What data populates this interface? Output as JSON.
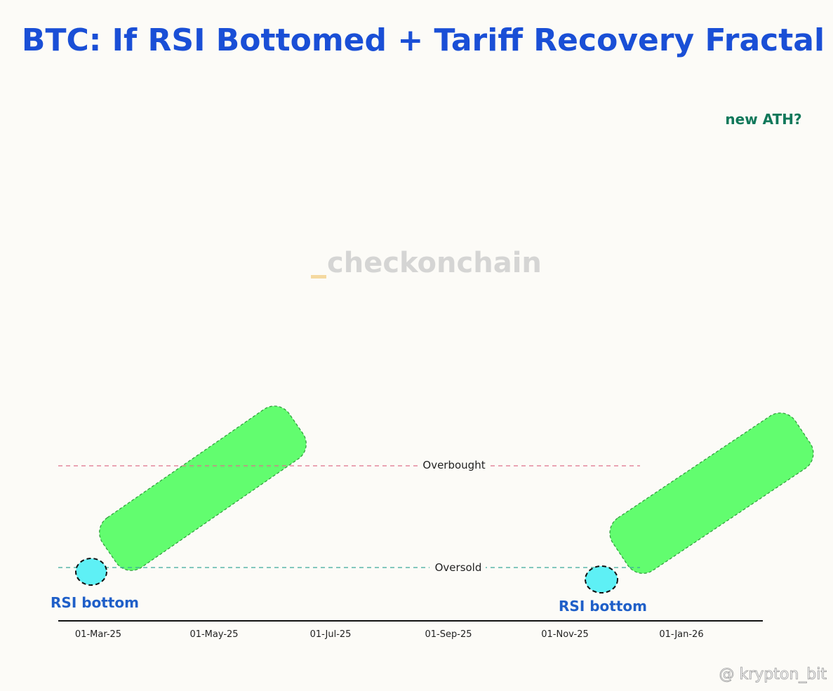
{
  "title": "BTC: If RSI Bottomed + Tariff Recovery Fractal",
  "watermark": "checkonchain",
  "credit": "@ krypton_bit",
  "annotations": {
    "new_ath": "new ATH?",
    "rsi_bottom_left": "RSI bottom",
    "rsi_bottom_right": "RSI bottom"
  },
  "colors": {
    "title": "#1a4fd6",
    "price_line": "#111111",
    "projection_line": "#2ecf95",
    "rsi_line": "#6a5acd",
    "overbought": "#e0708a",
    "oversold": "#3aaa9a",
    "highlight_box": "#5dfd6a",
    "bottom_circle": "#5ef0f5"
  },
  "chart_data": {
    "type": "line",
    "x_ticks": [
      "01-Mar-25",
      "01-May-25",
      "01-Jul-25",
      "01-Sep-25",
      "01-Nov-25",
      "01-Jan-26"
    ],
    "series": [],
    "levels": {
      "overbought_label": "Overbought",
      "oversold_label": "Oversold"
    }
  }
}
